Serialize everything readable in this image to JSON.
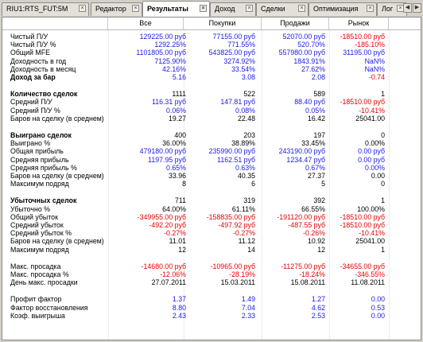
{
  "tabs": [
    {
      "label": "RIU1:RTS_FUT:5M"
    },
    {
      "label": "Редактор"
    },
    {
      "label": "Результаты"
    },
    {
      "label": "Доход"
    },
    {
      "label": "Сделки"
    },
    {
      "label": "Оптимизация"
    },
    {
      "label": "Лог"
    }
  ],
  "active_tab": "Результаты",
  "columns": [
    "Все",
    "Покупки",
    "Продажи",
    "Рынок"
  ],
  "rows": [
    {
      "type": "data",
      "label": "Чистый П/У",
      "values": [
        "129225.00 руб",
        "77155.00 руб",
        "52070.00 руб",
        "-18510.00 руб"
      ],
      "colors": [
        "blue",
        "blue",
        "blue",
        "red"
      ]
    },
    {
      "type": "data",
      "label": "Чистый П/У %",
      "values": [
        "1292.25%",
        "771.55%",
        "520.70%",
        "-185.10%"
      ],
      "colors": [
        "blue",
        "blue",
        "blue",
        "red"
      ]
    },
    {
      "type": "data",
      "label": "Общий MFE",
      "values": [
        "1101805.00 руб",
        "543825.00 руб",
        "557980.00 руб",
        "31195.00 руб"
      ],
      "colors": [
        "blue",
        "blue",
        "blue",
        "blue"
      ]
    },
    {
      "type": "data",
      "label": "Доходность в год",
      "values": [
        "7125.90%",
        "3274.92%",
        "1843.91%",
        "NaN%"
      ],
      "colors": [
        "blue",
        "blue",
        "blue",
        "blue"
      ]
    },
    {
      "type": "data",
      "label": "Доходность в месяц",
      "values": [
        "42.16%",
        "33.54%",
        "27.62%",
        "NaN%"
      ],
      "colors": [
        "blue",
        "blue",
        "blue",
        "blue"
      ]
    },
    {
      "type": "section",
      "label": "Доход за бар",
      "values": [
        "5.16",
        "3.08",
        "2.08",
        "-0.74"
      ],
      "colors": [
        "blue",
        "blue",
        "blue",
        "red"
      ]
    },
    {
      "type": "spacer"
    },
    {
      "type": "section",
      "label": "Количество сделок",
      "values": [
        "1111",
        "522",
        "589",
        "1"
      ],
      "colors": [
        "black",
        "black",
        "black",
        "black"
      ]
    },
    {
      "type": "data",
      "label": "Средний П/У",
      "values": [
        "116.31 руб",
        "147.81 руб",
        "88.40 руб",
        "-18510.00 руб"
      ],
      "colors": [
        "blue",
        "blue",
        "blue",
        "red"
      ]
    },
    {
      "type": "data",
      "label": "Средний П/У %",
      "values": [
        "0.06%",
        "0.08%",
        "0.05%",
        "-10.41%"
      ],
      "colors": [
        "blue",
        "blue",
        "blue",
        "red"
      ]
    },
    {
      "type": "data",
      "label": "Баров на сделку (в среднем)",
      "values": [
        "19.27",
        "22.48",
        "16.42",
        "25041.00"
      ],
      "colors": [
        "black",
        "black",
        "black",
        "black"
      ]
    },
    {
      "type": "spacer"
    },
    {
      "type": "section",
      "label": "Выиграно сделок",
      "values": [
        "400",
        "203",
        "197",
        "0"
      ],
      "colors": [
        "black",
        "black",
        "black",
        "black"
      ]
    },
    {
      "type": "data",
      "label": "Выиграно %",
      "values": [
        "36.00%",
        "38.89%",
        "33.45%",
        "0.00%"
      ],
      "colors": [
        "black",
        "black",
        "black",
        "black"
      ]
    },
    {
      "type": "data",
      "label": "Общая прибыль",
      "values": [
        "479180.00 руб",
        "235990.00 руб",
        "243190.00 руб",
        "0.00 руб"
      ],
      "colors": [
        "blue",
        "blue",
        "blue",
        "blue"
      ]
    },
    {
      "type": "data",
      "label": "Средняя прибыль",
      "values": [
        "1197.95 руб",
        "1162.51 руб",
        "1234.47 руб",
        "0.00 руб"
      ],
      "colors": [
        "blue",
        "blue",
        "blue",
        "blue"
      ]
    },
    {
      "type": "data",
      "label": "Средняя прибыль %",
      "values": [
        "0.65%",
        "0.63%",
        "0.67%",
        "0.00%"
      ],
      "colors": [
        "blue",
        "blue",
        "blue",
        "blue"
      ]
    },
    {
      "type": "data",
      "label": "Баров на сделку (в среднем)",
      "values": [
        "33.96",
        "40.35",
        "27.37",
        "0.00"
      ],
      "colors": [
        "black",
        "black",
        "black",
        "black"
      ]
    },
    {
      "type": "data",
      "label": "Максимум подряд",
      "values": [
        "8",
        "6",
        "5",
        "0"
      ],
      "colors": [
        "black",
        "black",
        "black",
        "black"
      ]
    },
    {
      "type": "spacer"
    },
    {
      "type": "section",
      "label": "Убыточных сделок",
      "values": [
        "711",
        "319",
        "392",
        "1"
      ],
      "colors": [
        "black",
        "black",
        "black",
        "black"
      ]
    },
    {
      "type": "data",
      "label": "Убыточно %",
      "values": [
        "64.00%",
        "61.11%",
        "66.55%",
        "100.00%"
      ],
      "colors": [
        "black",
        "black",
        "black",
        "black"
      ]
    },
    {
      "type": "data",
      "label": "Общий убыток",
      "values": [
        "-349955.00 руб",
        "-158835.00 руб",
        "-191120.00 руб",
        "-18510.00 руб"
      ],
      "colors": [
        "red",
        "red",
        "red",
        "red"
      ]
    },
    {
      "type": "data",
      "label": "Средний убыток",
      "values": [
        "-492.20 руб",
        "-497.92 руб",
        "-487.55 руб",
        "-18510.00 руб"
      ],
      "colors": [
        "red",
        "red",
        "red",
        "red"
      ]
    },
    {
      "type": "data",
      "label": "Средний убыток %",
      "values": [
        "-0.27%",
        "-0.27%",
        "-0.26%",
        "-10.41%"
      ],
      "colors": [
        "red",
        "red",
        "red",
        "red"
      ]
    },
    {
      "type": "data",
      "label": "Баров на сделку (в среднем)",
      "values": [
        "11.01",
        "11.12",
        "10.92",
        "25041.00"
      ],
      "colors": [
        "black",
        "black",
        "black",
        "black"
      ]
    },
    {
      "type": "data",
      "label": "Максимум подряд",
      "values": [
        "12",
        "14",
        "12",
        "1"
      ],
      "colors": [
        "black",
        "black",
        "black",
        "black"
      ]
    },
    {
      "type": "spacer"
    },
    {
      "type": "data",
      "label": "Макс. просадка",
      "values": [
        "-14680.00 руб",
        "-10965.00 руб",
        "-11275.00 руб",
        "-34655.00 руб"
      ],
      "colors": [
        "red",
        "red",
        "red",
        "red"
      ]
    },
    {
      "type": "data",
      "label": "Макс. просадка %",
      "values": [
        "-12.06%",
        "-28.19%",
        "-18.24%",
        "-346.55%"
      ],
      "colors": [
        "red",
        "red",
        "red",
        "red"
      ]
    },
    {
      "type": "data",
      "label": "День макс. просадки",
      "values": [
        "27.07.2011",
        "15.03.2011",
        "15.08.2011",
        "11.08.2011"
      ],
      "colors": [
        "black",
        "black",
        "black",
        "black"
      ]
    },
    {
      "type": "spacer"
    },
    {
      "type": "data",
      "label": "Профит фактор",
      "values": [
        "1.37",
        "1.49",
        "1.27",
        "0.00"
      ],
      "colors": [
        "blue",
        "blue",
        "blue",
        "blue"
      ]
    },
    {
      "type": "data",
      "label": "Фактор восстановления",
      "values": [
        "8.80",
        "7.04",
        "4.62",
        "0.53"
      ],
      "colors": [
        "blue",
        "blue",
        "blue",
        "blue"
      ]
    },
    {
      "type": "data",
      "label": "Коэф. выигрыша",
      "values": [
        "2.43",
        "2.33",
        "2.53",
        "0.00"
      ],
      "colors": [
        "blue",
        "blue",
        "blue",
        "blue"
      ]
    }
  ]
}
